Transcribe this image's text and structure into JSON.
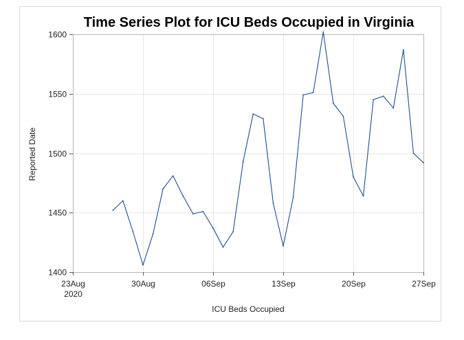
{
  "chart_data": {
    "type": "line",
    "title": "Time Series Plot for ICU Beds Occupied in Virginia",
    "xlabel": "ICU Beds Occupied",
    "ylabel": "Reported Date",
    "x_axis": {
      "type": "date",
      "min": "2020-08-23",
      "max": "2020-09-27",
      "ticks": [
        {
          "date": "2020-08-23",
          "label": "23Aug",
          "sublabel": "2020"
        },
        {
          "date": "2020-08-30",
          "label": "30Aug"
        },
        {
          "date": "2020-09-06",
          "label": "06Sep"
        },
        {
          "date": "2020-09-13",
          "label": "13Sep"
        },
        {
          "date": "2020-09-20",
          "label": "20Sep"
        },
        {
          "date": "2020-09-27",
          "label": "27Sep"
        }
      ]
    },
    "ylim": [
      1400,
      1600
    ],
    "y_ticks": [
      1400,
      1450,
      1500,
      1550,
      1600
    ],
    "grid": true,
    "legend": "none",
    "color": "#1f4e8c",
    "series": [
      {
        "points": [
          {
            "x": "2020-08-27",
            "y": 1452
          },
          {
            "x": "2020-08-28",
            "y": 1460
          },
          {
            "x": "2020-08-29",
            "y": 1434
          },
          {
            "x": "2020-08-30",
            "y": 1406
          },
          {
            "x": "2020-08-31",
            "y": 1432
          },
          {
            "x": "2020-09-01",
            "y": 1470
          },
          {
            "x": "2020-09-02",
            "y": 1481
          },
          {
            "x": "2020-09-03",
            "y": 1464
          },
          {
            "x": "2020-09-04",
            "y": 1449
          },
          {
            "x": "2020-09-05",
            "y": 1451
          },
          {
            "x": "2020-09-06",
            "y": 1437
          },
          {
            "x": "2020-09-07",
            "y": 1421
          },
          {
            "x": "2020-09-08",
            "y": 1434
          },
          {
            "x": "2020-09-09",
            "y": 1493
          },
          {
            "x": "2020-09-10",
            "y": 1533
          },
          {
            "x": "2020-09-11",
            "y": 1529
          },
          {
            "x": "2020-09-12",
            "y": 1458
          },
          {
            "x": "2020-09-13",
            "y": 1422
          },
          {
            "x": "2020-09-14",
            "y": 1463
          },
          {
            "x": "2020-09-15",
            "y": 1549
          },
          {
            "x": "2020-09-16",
            "y": 1551
          },
          {
            "x": "2020-09-17",
            "y": 1602
          },
          {
            "x": "2020-09-18",
            "y": 1542
          },
          {
            "x": "2020-09-19",
            "y": 1531
          },
          {
            "x": "2020-09-20",
            "y": 1480
          },
          {
            "x": "2020-09-21",
            "y": 1464
          },
          {
            "x": "2020-09-22",
            "y": 1545
          },
          {
            "x": "2020-09-23",
            "y": 1548
          },
          {
            "x": "2020-09-24",
            "y": 1538
          },
          {
            "x": "2020-09-25",
            "y": 1587
          },
          {
            "x": "2020-09-26",
            "y": 1500
          },
          {
            "x": "2020-09-27",
            "y": 1492
          }
        ]
      }
    ]
  }
}
